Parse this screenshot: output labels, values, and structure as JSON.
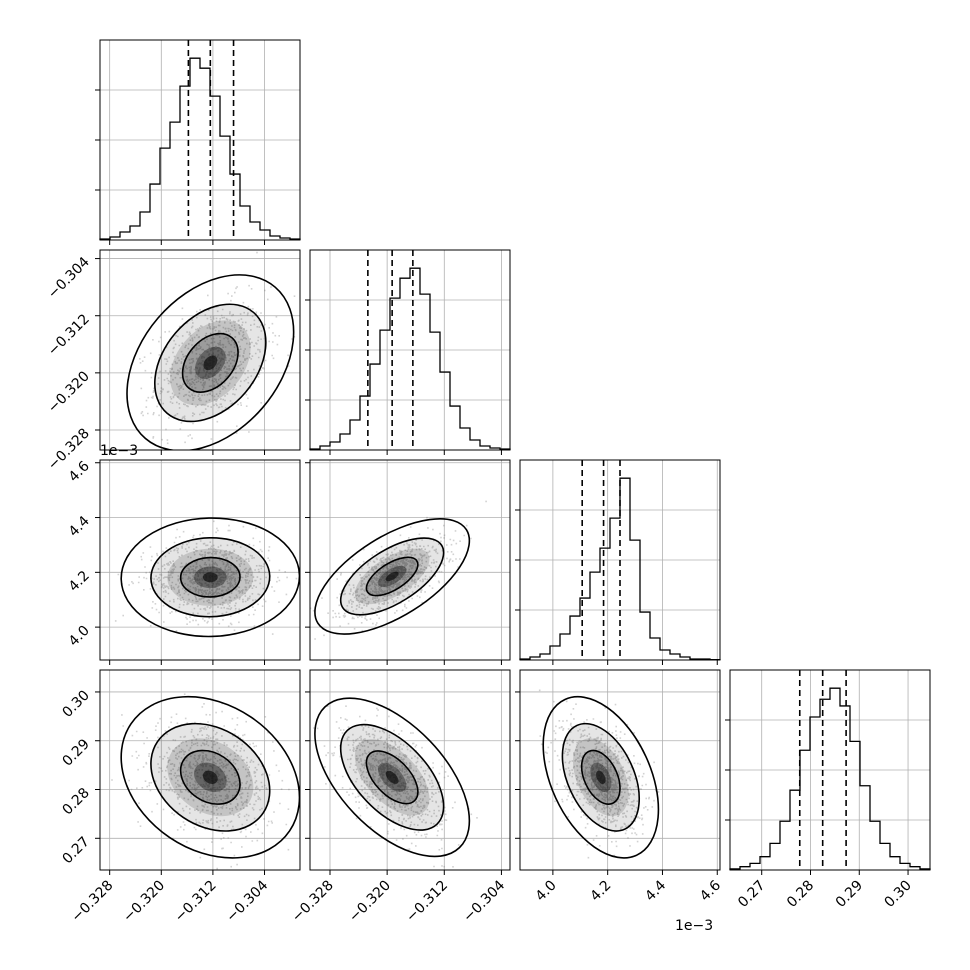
{
  "chart_data": {
    "type": "corner",
    "parameters": [
      {
        "range": [
          -0.3295,
          -0.2985
        ],
        "ticks": [
          -0.328,
          -0.32,
          -0.312,
          -0.304
        ],
        "tick_labels": [
          "−0.328",
          "−0.320",
          "−0.312",
          "−0.304"
        ],
        "quantiles": [
          -0.3158,
          -0.3124,
          -0.3088
        ]
      },
      {
        "range": [
          -0.3308,
          -0.3028
        ],
        "ticks": [
          -0.328,
          -0.32,
          -0.312,
          -0.304
        ],
        "tick_labels": [
          "−0.328",
          "−0.320",
          "−0.312",
          "−0.304"
        ],
        "quantiles": [
          -0.3227,
          -0.3193,
          -0.3164
        ]
      },
      {
        "range": [
          3.88,
          4.61
        ],
        "ticks": [
          4.0,
          4.2,
          4.4,
          4.6
        ],
        "tick_labels": [
          "4.0",
          "4.2",
          "4.4",
          "4.6"
        ],
        "quantiles": [
          4.107,
          4.185,
          4.245
        ],
        "offset_label": "1e−3"
      },
      {
        "range": [
          0.2635,
          0.3045
        ],
        "ticks": [
          0.27,
          0.28,
          0.29,
          0.3
        ],
        "tick_labels": [
          "0.27",
          "0.28",
          "0.29",
          "0.30"
        ],
        "quantiles": [
          0.2778,
          0.2825,
          0.2873
        ]
      }
    ],
    "histograms": [
      [
        0.5,
        1.5,
        4,
        7,
        14,
        28,
        46,
        59,
        77,
        91,
        86,
        72,
        52,
        33,
        17,
        9,
        5,
        2,
        1,
        0.5
      ],
      [
        0.5,
        2,
        4,
        8,
        15,
        27,
        43,
        60,
        76,
        86,
        91,
        78,
        59,
        39,
        22,
        11,
        5,
        2,
        1,
        0.5
      ],
      [
        0.5,
        1.5,
        3,
        7,
        13,
        22,
        31,
        44,
        56,
        71,
        91,
        60,
        24,
        11,
        5,
        3,
        1.5,
        0.5,
        0.5,
        0.2
      ],
      [
        0.5,
        1.5,
        3,
        6,
        12,
        22,
        36,
        54,
        69,
        77,
        82,
        74,
        58,
        38,
        22,
        12,
        6,
        3,
        1.5,
        0.5
      ]
    ],
    "pairs": [
      {
        "row": 1,
        "col": 0,
        "cx": -0.3124,
        "cy": -0.3186,
        "sx": 0.0043,
        "sy": 0.0041,
        "rho": 0.35
      },
      {
        "row": 2,
        "col": 0,
        "cx": -0.3124,
        "cy": 4.182,
        "sx": 0.0046,
        "sy": 0.072,
        "rho": 0.02
      },
      {
        "row": 2,
        "col": 1,
        "cx": -0.3193,
        "cy": 4.185,
        "sx": 0.0036,
        "sy": 0.07,
        "rho": 0.62
      },
      {
        "row": 3,
        "col": 0,
        "cx": -0.3124,
        "cy": 0.2825,
        "sx": 0.0046,
        "sy": 0.0055,
        "rho": -0.25
      },
      {
        "row": 3,
        "col": 1,
        "cx": -0.3193,
        "cy": 0.2825,
        "sx": 0.0036,
        "sy": 0.0054,
        "rho": -0.55
      },
      {
        "row": 3,
        "col": 2,
        "cx": 4.175,
        "cy": 0.2825,
        "sx": 0.07,
        "sy": 0.0055,
        "rho": -0.4
      }
    ],
    "contour_levels": [
      0.393,
      0.865,
      0.989
    ],
    "grid": true,
    "colors": {
      "line": "#000000",
      "grid": "#b0b0b0",
      "points": "#7f7f7f",
      "density": "#000000"
    }
  }
}
